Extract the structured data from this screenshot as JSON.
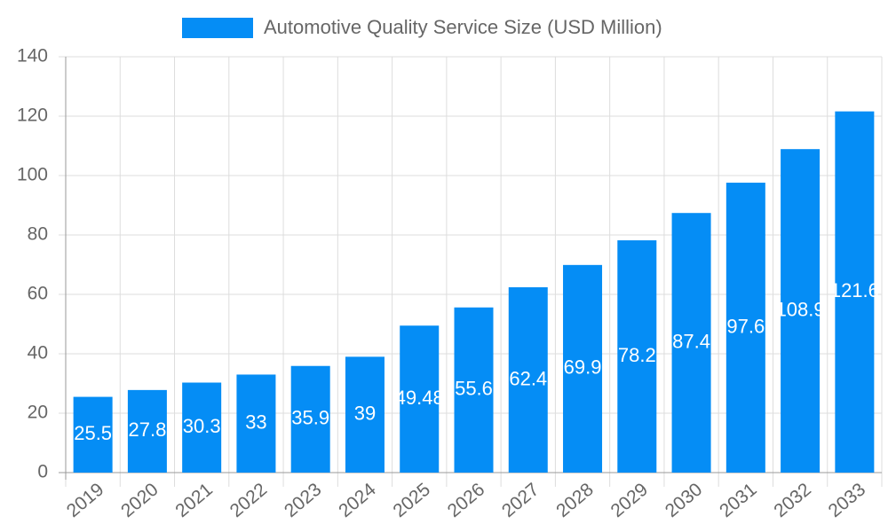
{
  "chart_data": {
    "type": "bar",
    "categories": [
      "2019",
      "2020",
      "2021",
      "2022",
      "2023",
      "2024",
      "2025",
      "2026",
      "2027",
      "2028",
      "2029",
      "2030",
      "2031",
      "2032",
      "2033"
    ],
    "series": [
      {
        "name": "Automotive Quality Service Size (USD Million)",
        "color": "#058df5",
        "values": [
          25.5,
          27.8,
          30.3,
          33,
          35.9,
          39,
          49.48,
          55.6,
          62.4,
          69.9,
          78.2,
          87.4,
          97.6,
          108.9,
          121.6
        ]
      }
    ],
    "ylim": [
      0,
      140
    ],
    "yticks": [
      0,
      20,
      40,
      60,
      80,
      100,
      120,
      140
    ],
    "grid": true,
    "legend": "top"
  }
}
